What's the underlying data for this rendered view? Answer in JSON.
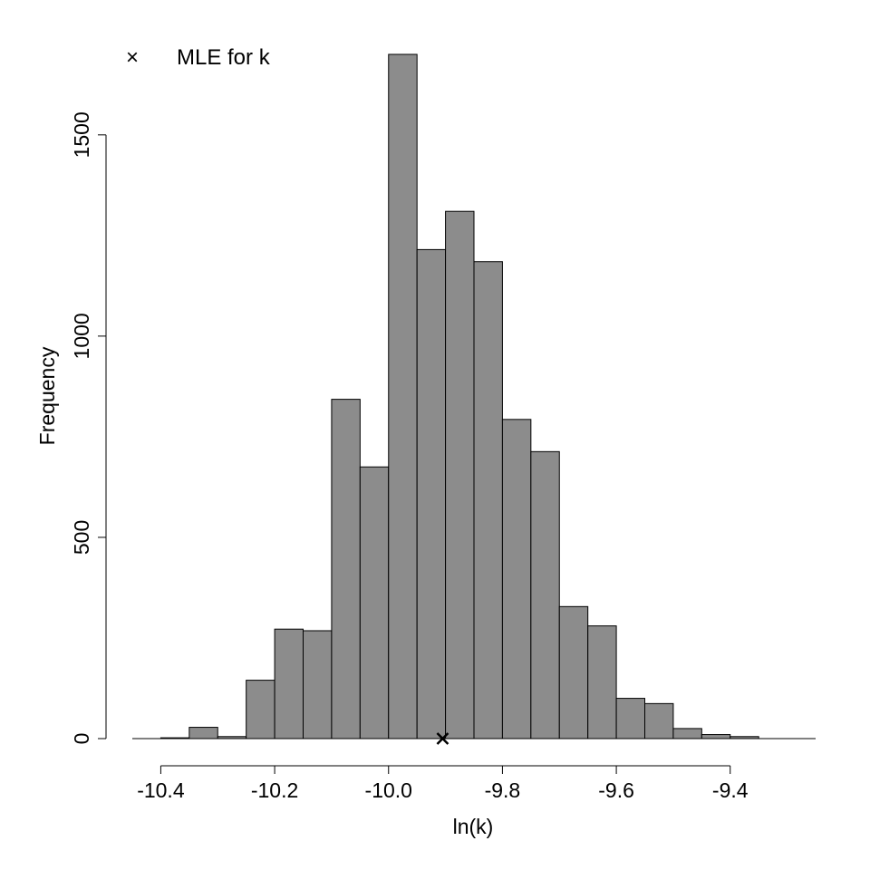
{
  "chart_data": {
    "type": "bar",
    "title": "",
    "xlabel": "ln(k)",
    "ylabel": "Frequency",
    "bin_width": 0.05,
    "bins_start": [
      -10.4,
      -10.35,
      -10.3,
      -10.25,
      -10.2,
      -10.15,
      -10.1,
      -10.05,
      -10.0,
      -9.95,
      -9.9,
      -9.85,
      -9.8,
      -9.75,
      -9.7,
      -9.65,
      -9.6,
      -9.55,
      -9.5,
      -9.45,
      -9.4,
      -9.35
    ],
    "values": [
      2,
      28,
      5,
      145,
      272,
      268,
      843,
      675,
      1700,
      1215,
      1310,
      1185,
      793,
      713,
      328,
      280,
      100,
      87,
      25,
      10,
      5,
      0
    ],
    "xlim": [
      -10.45,
      -9.25
    ],
    "ylim": [
      0,
      1700
    ],
    "x_ticks": [
      -10.4,
      -10.2,
      -10.0,
      -9.8,
      -9.6,
      -9.4
    ],
    "x_tick_labels": [
      "-10.4",
      "-10.2",
      "-10.0",
      "-9.8",
      "-9.6",
      "-9.4"
    ],
    "y_ticks": [
      0,
      500,
      1000,
      1500
    ],
    "y_tick_labels": [
      "0",
      "500",
      "1000",
      "1500"
    ],
    "bar_color": "#8c8c8c",
    "marker": {
      "x": -9.905,
      "y": 0,
      "symbol": "×"
    },
    "legend": {
      "position": "top-left",
      "entries": [
        {
          "symbol": "×",
          "label": "MLE for k"
        }
      ]
    },
    "grid": false
  }
}
